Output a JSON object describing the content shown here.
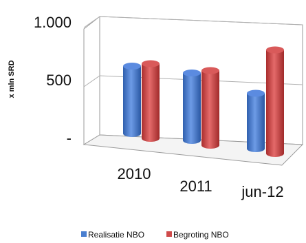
{
  "chart_data": {
    "type": "bar",
    "style": "3d-cylinder",
    "ylabel": "x mln SRD",
    "ylim": [
      0,
      1000
    ],
    "yticks": [
      {
        "value": 0,
        "label": "-"
      },
      {
        "value": 500,
        "label": "500"
      },
      {
        "value": 1000,
        "label": "1.000"
      }
    ],
    "categories": [
      "2010",
      "2011",
      "jun-12"
    ],
    "series": [
      {
        "name": "Realisatie NBO",
        "color": "#4a7fd0",
        "values": [
          560,
          560,
          460
        ]
      },
      {
        "name": "Begroting NBO",
        "color": "#cf4a4a",
        "values": [
          620,
          620,
          860
        ]
      }
    ],
    "grid": true,
    "legend": "bottom"
  }
}
